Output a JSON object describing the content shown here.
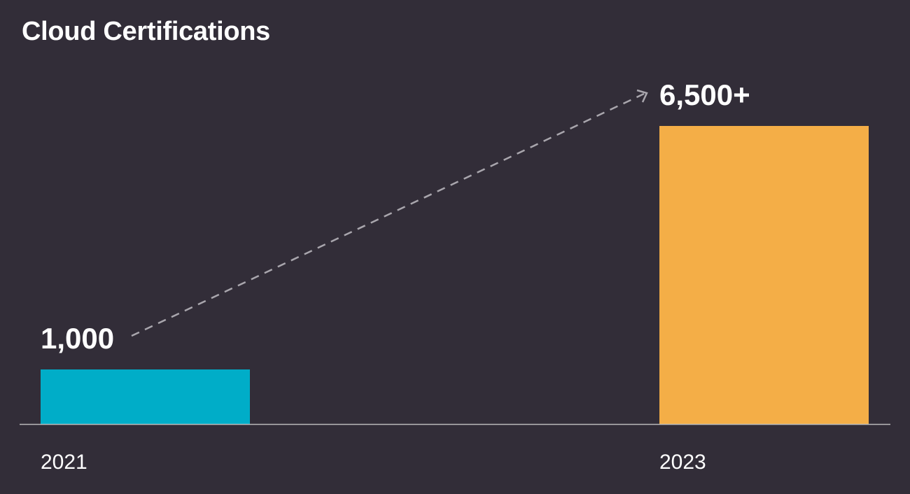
{
  "chart_data": {
    "type": "bar",
    "title": "Cloud Certifications",
    "categories": [
      "2021",
      "2023"
    ],
    "values": [
      1000,
      6500
    ],
    "data_labels": [
      "1,000",
      "6,500+"
    ],
    "colors": [
      "#00adc8",
      "#f4ae47"
    ],
    "background": "#322d38",
    "xlabel": "",
    "ylabel": "",
    "ylim": [
      0,
      6500
    ],
    "grid": false,
    "annotation": "dashed arrow from 2021 label to 2023 label"
  }
}
